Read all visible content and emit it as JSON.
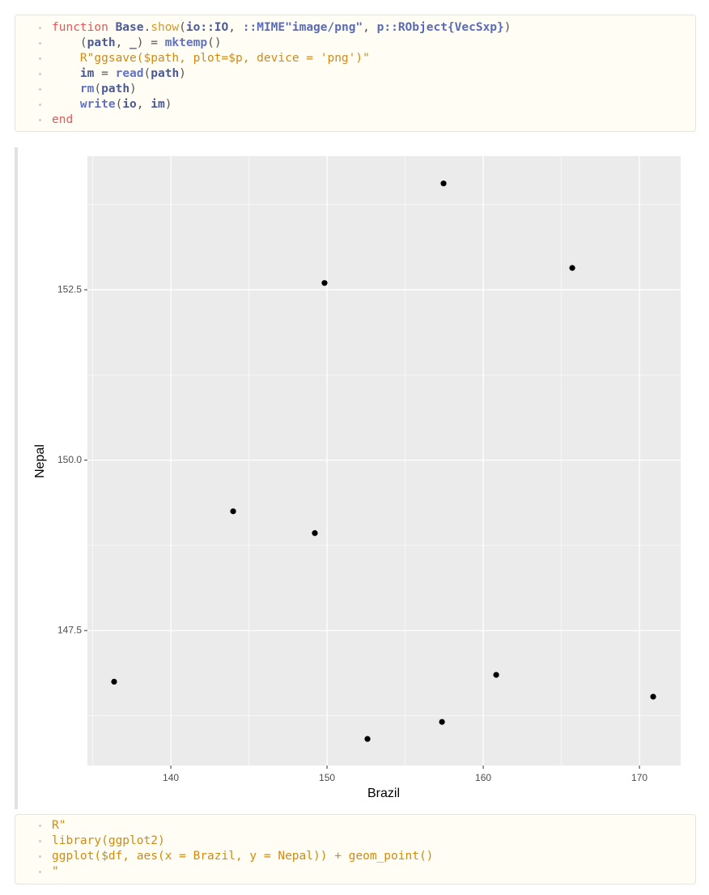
{
  "cells": [
    {
      "lines": [
        [
          {
            "text": "function",
            "color": "#e0585b"
          },
          {
            "text": " ",
            "color": "#555555"
          },
          {
            "text": "Base",
            "color": "#4b5a95",
            "bold": true
          },
          {
            "text": ".",
            "color": "#555555"
          },
          {
            "text": "show",
            "color": "#d39b2a"
          },
          {
            "text": "(",
            "color": "#555555"
          },
          {
            "text": "io::IO",
            "color": "#4b5a95",
            "bold": true
          },
          {
            "text": ", ",
            "color": "#555555"
          },
          {
            "text": "::MIME\"image/png\"",
            "color": "#5a6bb5",
            "bold": true
          },
          {
            "text": ", ",
            "color": "#555555"
          },
          {
            "text": "p::RObject{VecSxp}",
            "color": "#5a6bb5",
            "bold": true
          },
          {
            "text": ")",
            "color": "#555555"
          }
        ],
        [
          {
            "text": "    (",
            "color": "#555555"
          },
          {
            "text": "path",
            "color": "#4b5a95",
            "bold": true
          },
          {
            "text": ", ",
            "color": "#555555"
          },
          {
            "text": "_",
            "color": "#4b5a95",
            "bold": true
          },
          {
            "text": ") = ",
            "color": "#555555"
          },
          {
            "text": "mktemp",
            "color": "#6273c4",
            "bold": true
          },
          {
            "text": "()",
            "color": "#555555"
          }
        ],
        [
          {
            "text": "    ",
            "color": "#555555"
          },
          {
            "text": "R\"ggsave($path, plot=$p, device = 'png')\"",
            "color": "#d08b13"
          }
        ],
        [
          {
            "text": "    ",
            "color": "#555555"
          },
          {
            "text": "im",
            "color": "#4b5a95",
            "bold": true
          },
          {
            "text": " = ",
            "color": "#555555"
          },
          {
            "text": "read",
            "color": "#6273c4",
            "bold": true
          },
          {
            "text": "(",
            "color": "#555555"
          },
          {
            "text": "path",
            "color": "#4b5a95",
            "bold": true
          },
          {
            "text": ")",
            "color": "#555555"
          }
        ],
        [
          {
            "text": "    ",
            "color": "#555555"
          },
          {
            "text": "rm",
            "color": "#6273c4",
            "bold": true
          },
          {
            "text": "(",
            "color": "#555555"
          },
          {
            "text": "path",
            "color": "#4b5a95",
            "bold": true
          },
          {
            "text": ")",
            "color": "#555555"
          }
        ],
        [
          {
            "text": "    ",
            "color": "#555555"
          },
          {
            "text": "write",
            "color": "#6273c4",
            "bold": true
          },
          {
            "text": "(",
            "color": "#555555"
          },
          {
            "text": "io",
            "color": "#4b5a95",
            "bold": true
          },
          {
            "text": ", ",
            "color": "#555555"
          },
          {
            "text": "im",
            "color": "#4b5a95",
            "bold": true
          },
          {
            "text": ")",
            "color": "#555555"
          }
        ],
        [
          {
            "text": "end",
            "color": "#e0585b"
          }
        ]
      ]
    },
    {
      "lines": [
        [
          {
            "text": "R\"",
            "color": "#d08b13"
          }
        ],
        [
          {
            "text": "library(ggplot2)",
            "color": "#d08b13"
          }
        ],
        [
          {
            "text": "ggplot($df, aes(x = Brazil, y = Nepal)) + geom_point()",
            "color": "#d08b13"
          }
        ],
        [
          {
            "text": "\"",
            "color": "#d08b13"
          }
        ]
      ]
    }
  ],
  "chart_data": {
    "type": "scatter",
    "x_label": "Brazil",
    "y_label": "Nepal",
    "x": [
      136.37,
      143.99,
      149.22,
      149.84,
      152.59,
      157.36,
      157.46,
      160.83,
      165.7,
      170.88
    ],
    "values": [
      146.75,
      149.25,
      148.93,
      152.6,
      145.91,
      146.16,
      154.06,
      146.85,
      152.82,
      146.53
    ],
    "color": "#000000",
    "xlim": [
      134.66,
      172.64
    ],
    "ylim": [
      145.52,
      154.46
    ],
    "xticks": [
      140,
      150,
      160,
      170
    ],
    "yticks": [
      147.5,
      {
        "value": 150,
        "label": "150.0"
      },
      152.5
    ],
    "x_minor": [
      135,
      145,
      155,
      165
    ],
    "y_minor": [
      146.25,
      148.75,
      151.25,
      153.75
    ],
    "grid": true
  }
}
